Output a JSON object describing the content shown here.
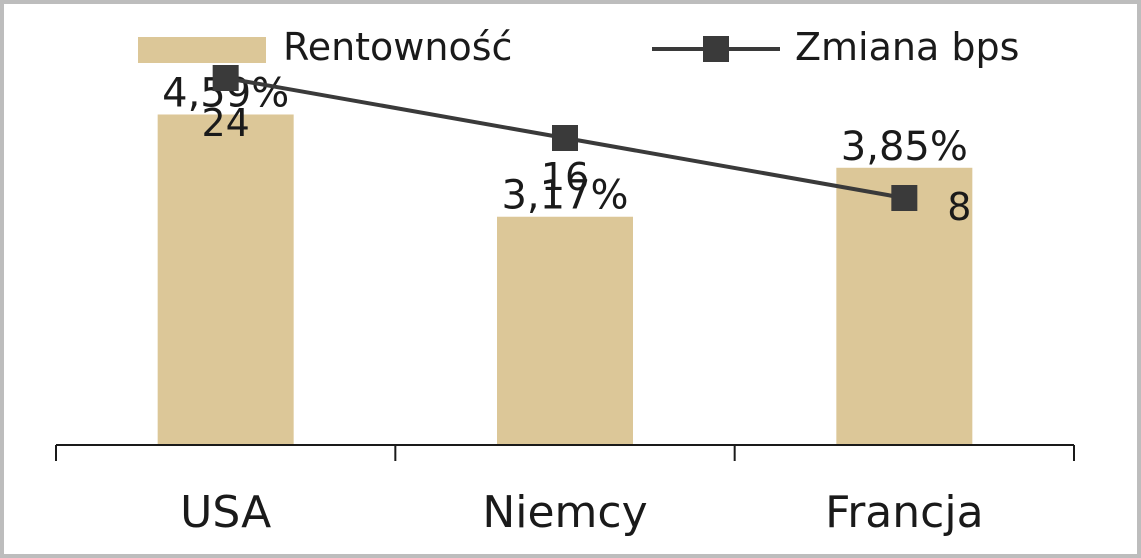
{
  "chart_data": {
    "type": "bar",
    "categories": [
      "USA",
      "Niemcy",
      "Francja"
    ],
    "series": [
      {
        "name": "Rentowność",
        "kind": "bar",
        "values": [
          4.59,
          3.17,
          3.85
        ],
        "labels": [
          "4,59%",
          "3,17%",
          "3,85%"
        ],
        "color": "#dcc798"
      },
      {
        "name": "Zmiana bps",
        "kind": "line",
        "values": [
          24,
          16,
          8
        ],
        "labels": [
          "24",
          "16",
          "8"
        ],
        "color": "#3a3a3a"
      }
    ],
    "bar_ylim": [
      0,
      6.18
    ],
    "line_ylim": [
      -0.5,
      25.9
    ],
    "legend": "top",
    "grid": false
  }
}
